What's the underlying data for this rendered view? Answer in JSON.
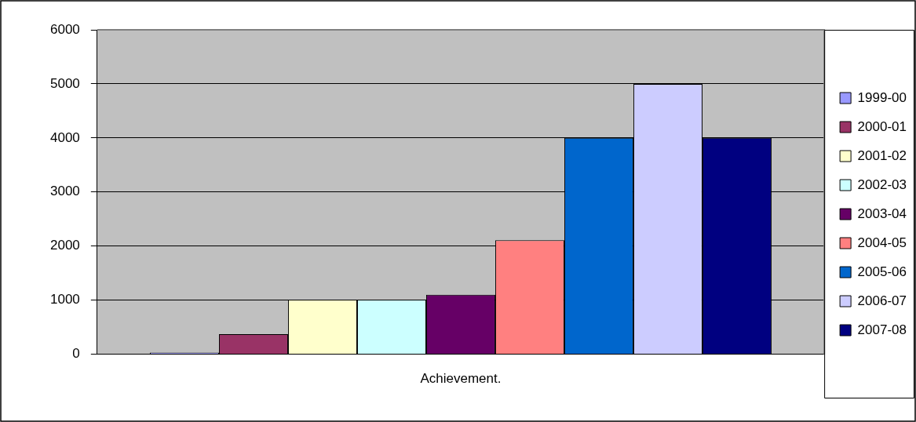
{
  "chart_data": {
    "type": "bar",
    "categories": [
      "Achievement."
    ],
    "series": [
      {
        "name": "1999-00",
        "color": "#9999ff",
        "values": [
          30
        ]
      },
      {
        "name": "2000-01",
        "color": "#993366",
        "values": [
          370
        ]
      },
      {
        "name": "2001-02",
        "color": "#ffffcc",
        "values": [
          1010
        ]
      },
      {
        "name": "2002-03",
        "color": "#ccffff",
        "values": [
          1010
        ]
      },
      {
        "name": "2003-04",
        "color": "#660066",
        "values": [
          1100
        ]
      },
      {
        "name": "2004-05",
        "color": "#ff8080",
        "values": [
          2110
        ]
      },
      {
        "name": "2005-06",
        "color": "#0066cc",
        "values": [
          4000
        ]
      },
      {
        "name": "2006-07",
        "color": "#ccccff",
        "values": [
          5000
        ]
      },
      {
        "name": "2007-08",
        "color": "#000080",
        "values": [
          4000
        ]
      }
    ],
    "ylim": [
      0,
      6000
    ],
    "yticks": [
      0,
      1000,
      2000,
      3000,
      4000,
      5000,
      6000
    ],
    "grid": "y",
    "legend": "right"
  }
}
